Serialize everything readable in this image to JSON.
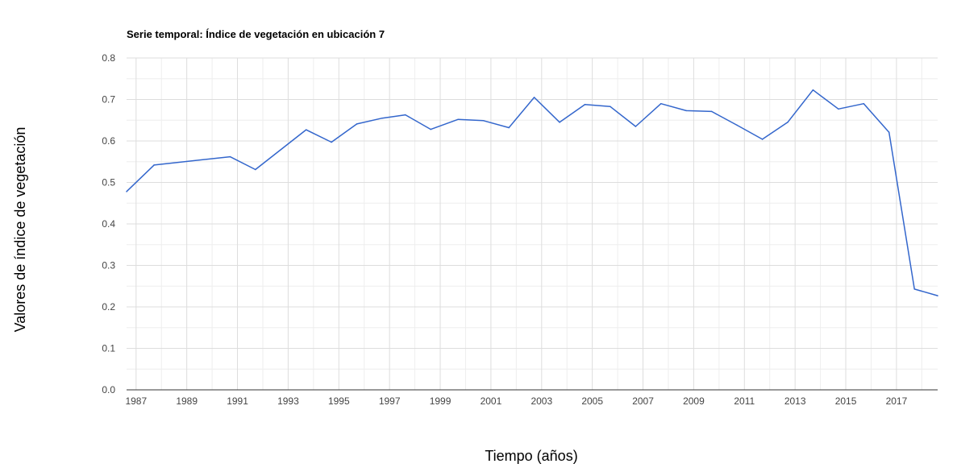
{
  "chart_data": {
    "type": "line",
    "title": "Serie temporal: Índice de vegetación en ubicación 7",
    "xlabel": "Tiempo (años)",
    "ylabel": "Valores de índice de vegetación",
    "xlim": [
      "1986-08",
      "2018-08"
    ],
    "ylim": [
      0,
      0.8
    ],
    "y_ticks": [
      "0.0",
      "0.1",
      "0.2",
      "0.3",
      "0.4",
      "0.5",
      "0.6",
      "0.7",
      "0.8"
    ],
    "x_ticks": [
      "1987",
      "1989",
      "1991",
      "1993",
      "1995",
      "1997",
      "1999",
      "2001",
      "2003",
      "2005",
      "2007",
      "2009",
      "2011",
      "2013",
      "2015",
      "2017"
    ],
    "grid": true,
    "legend": "none",
    "colors": {
      "line": "#3366cc",
      "grid": "#dddddd",
      "minor_grid": "#eeeeee",
      "axis": "#333333"
    },
    "series": [
      {
        "x": [
          "1986-08",
          "1987-09",
          "1990-09",
          "1991-09",
          "1993-09",
          "1994-09",
          "1995-09",
          "1996-09",
          "1997-08",
          "1998-08",
          "1999-09",
          "2000-09",
          "2001-09",
          "2002-09",
          "2003-09",
          "2004-09",
          "2005-09",
          "2006-09",
          "2007-09",
          "2008-09",
          "2009-09",
          "2010-09",
          "2011-09",
          "2012-09",
          "2013-09",
          "2014-09",
          "2015-09",
          "2016-09",
          "2017-09",
          "2018-08"
        ],
        "values": [
          0.478,
          0.542,
          0.562,
          0.531,
          0.627,
          0.597,
          0.641,
          0.655,
          0.663,
          0.628,
          0.652,
          0.649,
          0.632,
          0.705,
          0.645,
          0.688,
          0.683,
          0.635,
          0.69,
          0.673,
          0.671,
          0.638,
          0.604,
          0.645,
          0.723,
          0.677,
          0.69,
          0.621,
          0.243,
          0.227
        ]
      }
    ]
  }
}
